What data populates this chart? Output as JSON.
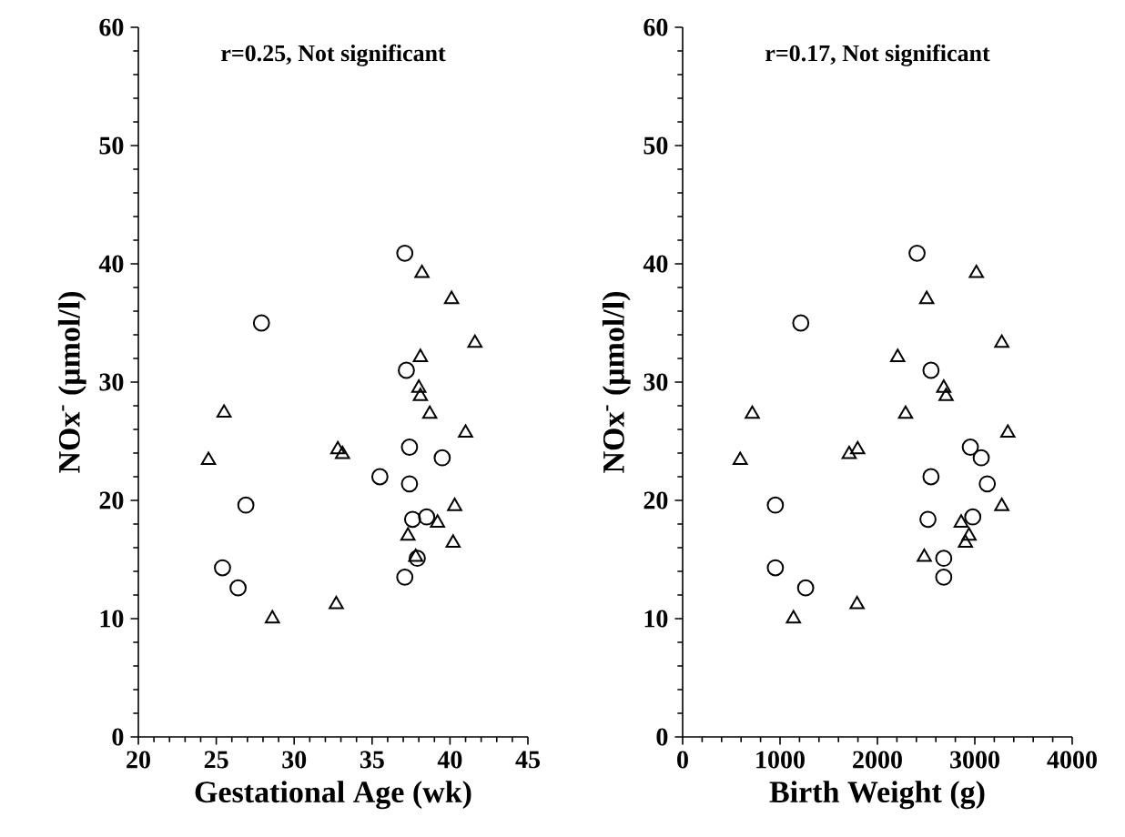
{
  "chart_data": [
    {
      "type": "scatter",
      "xlabel": "Gestational Age (wk)",
      "ylabel": "NOx$^{-}$ (μmol/l)",
      "annotations": [
        "r=0.25, Not significant"
      ],
      "xlim": [
        20,
        45
      ],
      "ylim": [
        0,
        60
      ],
      "xticks": [
        20,
        25,
        30,
        35,
        40,
        45
      ],
      "yticks": [
        0,
        10,
        20,
        30,
        40,
        50,
        60
      ],
      "series": [
        {
          "color": "#000000",
          "marker": "circle",
          "x": [
            37.1,
            27.9,
            37.2,
            37.4,
            39.5,
            35.5,
            37.4,
            26.9,
            37.6,
            38.5,
            25.4,
            26.4,
            37.1,
            37.9
          ],
          "values": [
            40.9,
            35.0,
            31.0,
            24.5,
            23.6,
            22.0,
            21.4,
            19.6,
            18.4,
            18.6,
            14.3,
            12.6,
            13.5,
            15.1
          ]
        },
        {
          "color": "#000000",
          "marker": "triangle",
          "x": [
            38.2,
            40.1,
            41.6,
            38.1,
            38.0,
            38.1,
            38.7,
            25.5,
            41.0,
            24.5,
            32.8,
            33.1,
            40.3,
            39.2,
            37.3,
            40.2,
            37.8,
            32.7,
            28.6
          ],
          "values": [
            39.2,
            37.0,
            33.3,
            32.1,
            29.5,
            28.8,
            27.3,
            27.4,
            25.7,
            23.4,
            24.3,
            23.9,
            19.5,
            18.1,
            17.0,
            16.4,
            15.2,
            11.2,
            10.0
          ]
        }
      ]
    },
    {
      "type": "scatter",
      "xlabel": "Birth Weight (g)",
      "ylabel": "NOx$^{-}$ (μmol/l)",
      "annotations": [
        "r=0.17, Not significant"
      ],
      "xlim": [
        0,
        4000
      ],
      "ylim": [
        0,
        60
      ],
      "xticks": [
        0,
        1000,
        2000,
        3000,
        4000
      ],
      "yticks": [
        0,
        10,
        20,
        30,
        40,
        50,
        60
      ],
      "series": [
        {
          "color": "#000000",
          "marker": "circle",
          "x": [
            2407,
            1213,
            2550,
            2954,
            3066,
            3128,
            2550,
            952,
            2519,
            2979,
            952,
            1263,
            2681,
            2681
          ],
          "values": [
            40.9,
            35.0,
            31.0,
            24.5,
            23.6,
            21.4,
            22.0,
            19.6,
            18.4,
            18.6,
            14.3,
            12.6,
            15.1,
            13.5
          ]
        },
        {
          "color": "#000000",
          "marker": "triangle",
          "x": [
            3016,
            2506,
            3277,
            2208,
            2681,
            2705,
            2289,
            715,
            3339,
            591,
            1710,
            1797,
            3277,
            2860,
            2941,
            2904,
            2481,
            1791,
            1138
          ],
          "values": [
            39.2,
            37.0,
            33.3,
            32.1,
            29.5,
            28.8,
            27.3,
            27.3,
            25.7,
            23.4,
            23.9,
            24.3,
            19.5,
            18.1,
            17.0,
            16.4,
            15.2,
            11.2,
            10.0
          ]
        }
      ]
    }
  ]
}
